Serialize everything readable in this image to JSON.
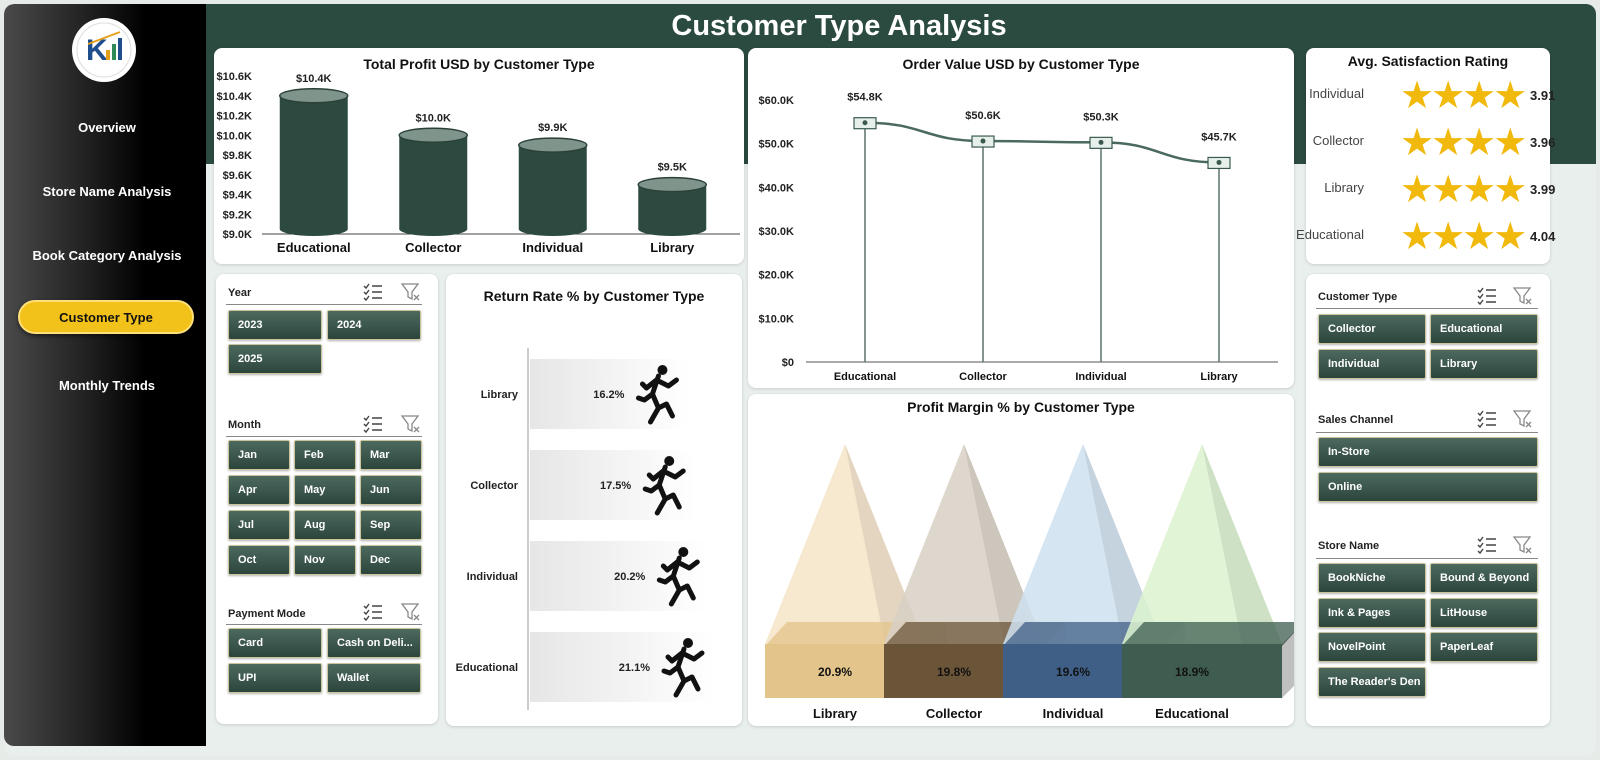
{
  "header": {
    "title": "Customer Type Analysis"
  },
  "sidebar": {
    "items": [
      {
        "label": "Overview"
      },
      {
        "label": "Store Name Analysis"
      },
      {
        "label": "Book Category Analysis"
      },
      {
        "label": "Customer Type"
      },
      {
        "label": "Monthly Trends"
      }
    ],
    "active_index": 3
  },
  "ratings": {
    "title": "Avg. Satisfaction Rating",
    "rows": [
      {
        "label": "Individual",
        "value": "3.91"
      },
      {
        "label": "Collector",
        "value": "3.96"
      },
      {
        "label": "Library",
        "value": "3.99"
      },
      {
        "label": "Educational",
        "value": "4.04"
      }
    ],
    "star_color": "#f2b90d"
  },
  "slicers": {
    "year": {
      "label": "Year",
      "options": [
        "2023",
        "2024",
        "2025"
      ]
    },
    "month": {
      "label": "Month",
      "options": [
        "Jan",
        "Feb",
        "Mar",
        "Apr",
        "May",
        "Jun",
        "Jul",
        "Aug",
        "Sep",
        "Oct",
        "Nov",
        "Dec"
      ]
    },
    "payment": {
      "label": "Payment Mode",
      "options": [
        "Card",
        "Cash on Deli...",
        "UPI",
        "Wallet"
      ]
    },
    "customer_type": {
      "label": "Customer Type",
      "options": [
        "Collector",
        "Educational",
        "Individual",
        "Library"
      ]
    },
    "sales_channel": {
      "label": "Sales Channel",
      "options": [
        "In-Store",
        "Online"
      ]
    },
    "store_name": {
      "label": "Store Name",
      "options": [
        "BookNiche",
        "Bound & Beyond",
        "Ink & Pages",
        "LitHouse",
        "NovelPoint",
        "PaperLeaf",
        "The Reader's Den"
      ]
    }
  },
  "colors": {
    "dark_green": "#2b4a40",
    "accent_yellow": "#f3c21a",
    "button_green": "#3a5a4f"
  },
  "chart_data": [
    {
      "id": "profit",
      "type": "bar",
      "title": "Total Profit USD by Customer Type",
      "categories": [
        "Educational",
        "Collector",
        "Individual",
        "Library"
      ],
      "values": [
        10.4,
        10.0,
        9.9,
        9.5
      ],
      "data_labels": [
        "$10.4K",
        "$10.0K",
        "$9.9K",
        "$9.5K"
      ],
      "ylim": [
        9.0,
        10.6
      ],
      "yticks": [
        "$9.0K",
        "$9.2K",
        "$9.4K",
        "$9.6K",
        "$9.8K",
        "$10.0K",
        "$10.2K",
        "$10.4K",
        "$10.6K"
      ],
      "color": "#2d4a41"
    },
    {
      "id": "order",
      "type": "line",
      "title": "Order Value USD by Customer Type",
      "categories": [
        "Educational",
        "Collector",
        "Individual",
        "Library"
      ],
      "values": [
        54.8,
        50.6,
        50.3,
        45.7
      ],
      "data_labels": [
        "$54.8K",
        "$50.6K",
        "$50.3K",
        "$45.7K"
      ],
      "ylim": [
        0,
        60
      ],
      "yticks": [
        "$0",
        "$10.0K",
        "$20.0K",
        "$30.0K",
        "$40.0K",
        "$50.0K",
        "$60.0K"
      ],
      "color": "#4a6a5e"
    },
    {
      "id": "return",
      "type": "bar",
      "orientation": "horizontal",
      "title": "Return Rate % by Customer Type",
      "categories": [
        "Library",
        "Collector",
        "Individual",
        "Educational"
      ],
      "values": [
        16.2,
        17.5,
        20.2,
        21.1
      ],
      "data_labels": [
        "16.2%",
        "17.5%",
        "20.2%",
        "21.1%"
      ]
    },
    {
      "id": "margin",
      "type": "bar",
      "title": "Profit Margin % by Customer Type",
      "categories": [
        "Library",
        "Collector",
        "Individual",
        "Educational"
      ],
      "values": [
        20.9,
        19.8,
        19.6,
        18.9
      ],
      "data_labels": [
        "20.9%",
        "19.8%",
        "19.6%",
        "18.9%"
      ],
      "colors": [
        "#e3c48a",
        "#6b5538",
        "#3f5f86",
        "#3e5c50"
      ],
      "tip_colors": [
        "#f6e4c8",
        "#d8d0c6",
        "#cfe0f0",
        "#dcf3cf"
      ]
    }
  ]
}
